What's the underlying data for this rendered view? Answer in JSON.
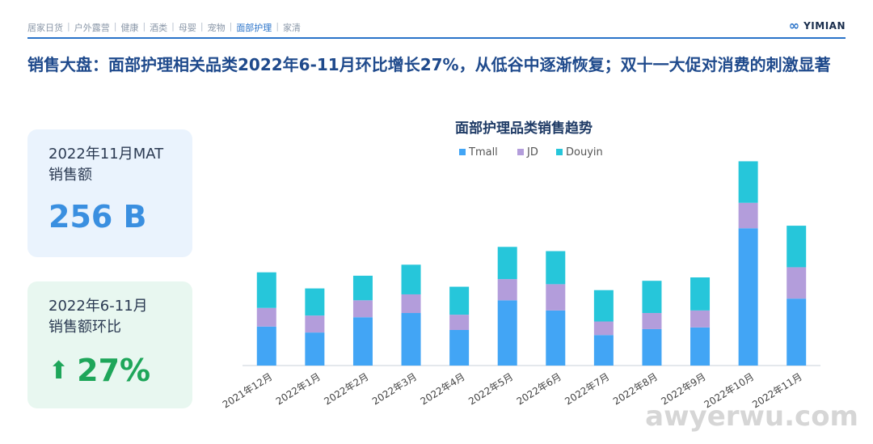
{
  "nav": {
    "items": [
      "居家日货",
      "户外露营",
      "健康",
      "酒类",
      "母婴",
      "宠物",
      "面部护理",
      "家清"
    ],
    "active_index": 6
  },
  "logo": {
    "text": "YIMIAN"
  },
  "headline": "销售大盘：面部护理相关品类2022年6-11月环比增长27%，从低谷中逐渐恢复；双十一大促对消费的刺激显著",
  "card1": {
    "label_line1": "2022年11月MAT",
    "label_line2": "销售额",
    "value": "256 B"
  },
  "card2": {
    "label_line1": "2022年6-11月",
    "label_line2": "销售额环比",
    "value": "27%",
    "arrow": "up-arrow-icon"
  },
  "watermark": "awyerwu.com",
  "colors": {
    "tmall": "#42a5f5",
    "jd": "#b39ddb",
    "douyin": "#26c6da",
    "accent": "#2a73c9",
    "positive": "#1ea65a"
  },
  "chart_data": {
    "type": "bar",
    "stacked": true,
    "title": "面部护理品类销售趋势",
    "categories": [
      "2021年12月",
      "2022年1月",
      "2022年2月",
      "2022年3月",
      "2022年4月",
      "2022年5月",
      "2022年6月",
      "2022年7月",
      "2022年8月",
      "2022年9月",
      "2022年10月",
      "2022年11月"
    ],
    "series": [
      {
        "name": "Tmall",
        "values": [
          46,
          39,
          57,
          62,
          42,
          77,
          65,
          36,
          43,
          45,
          162,
          79
        ]
      },
      {
        "name": "JD",
        "values": [
          22,
          20,
          20,
          22,
          18,
          25,
          31,
          16,
          19,
          20,
          30,
          37
        ]
      },
      {
        "name": "Douyin",
        "values": [
          42,
          32,
          29,
          35,
          33,
          38,
          39,
          37,
          38,
          39,
          49,
          49
        ]
      }
    ],
    "legend": "top-center",
    "grid": false,
    "ylim": [
      0,
      250
    ]
  }
}
